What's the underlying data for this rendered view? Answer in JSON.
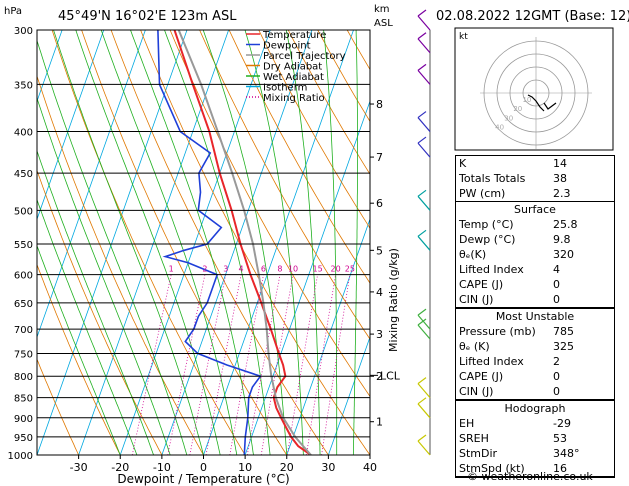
{
  "header": {
    "hpa_unit": "hPa",
    "km_unit": "km",
    "asl_label": "ASL",
    "location": "45°49'N  16°02'E  123m  ASL",
    "datetime": "02.08.2022  12GMT  (Base: 12)"
  },
  "legend": [
    {
      "label": "Temperature",
      "color": "#e8262a",
      "style": "solid"
    },
    {
      "label": "Dewpoint",
      "color": "#1f3fd8",
      "style": "solid"
    },
    {
      "label": "Parcel Trajectory",
      "color": "#999999",
      "style": "solid"
    },
    {
      "label": "Dry Adiabat",
      "color": "#e07800",
      "style": "solid"
    },
    {
      "label": "Wet Adiabat",
      "color": "#20b020",
      "style": "solid"
    },
    {
      "label": "Isotherm",
      "color": "#00a8e0",
      "style": "solid"
    },
    {
      "label": "Mixing Ratio",
      "color": "#d00090",
      "style": "dotted"
    }
  ],
  "chart_data": {
    "type": "line",
    "title": "",
    "xlabel": "Dewpoint / Temperature (°C)",
    "ylabel": "hPa",
    "right_axis_label": "Mixing Ratio (g/kg)",
    "pressure_levels": [
      300,
      350,
      400,
      450,
      500,
      550,
      600,
      650,
      700,
      750,
      800,
      850,
      900,
      950,
      1000
    ],
    "x_ticks": [
      -30,
      -20,
      -10,
      0,
      10,
      20,
      30,
      40
    ],
    "xlim": [
      -40,
      40
    ],
    "km_ticks": [
      {
        "label": "8",
        "p": 370
      },
      {
        "label": "7",
        "p": 430
      },
      {
        "label": "6",
        "p": 490
      },
      {
        "label": "5",
        "p": 560
      },
      {
        "label": "4",
        "p": 630
      },
      {
        "label": "3",
        "p": 710
      },
      {
        "label": "2",
        "p": 800
      },
      {
        "label": "1",
        "p": 910
      }
    ],
    "lcl_label": "LCL",
    "lcl_p": 798,
    "mixing_ratio_labels": [
      "1",
      "2",
      "3",
      "4",
      "6",
      "8",
      "10",
      "15",
      "20",
      "25"
    ],
    "mixing_ratio_values": [
      1,
      2,
      3,
      4,
      6,
      8,
      10,
      15,
      20,
      25
    ],
    "series": [
      {
        "name": "Temperature",
        "color": "#e8262a",
        "points": [
          {
            "p": 1000,
            "t": 25.8
          },
          {
            "p": 975,
            "t": 22
          },
          {
            "p": 950,
            "t": 19.5
          },
          {
            "p": 925,
            "t": 17.5
          },
          {
            "p": 900,
            "t": 15.5
          },
          {
            "p": 875,
            "t": 13.5
          },
          {
            "p": 850,
            "t": 12
          },
          {
            "p": 825,
            "t": 12
          },
          {
            "p": 800,
            "t": 13
          },
          {
            "p": 775,
            "t": 11.5
          },
          {
            "p": 750,
            "t": 9.5
          },
          {
            "p": 700,
            "t": 5.5
          },
          {
            "p": 650,
            "t": 1
          },
          {
            "p": 600,
            "t": -4
          },
          {
            "p": 550,
            "t": -9
          },
          {
            "p": 500,
            "t": -14
          },
          {
            "p": 450,
            "t": -20
          },
          {
            "p": 400,
            "t": -26
          },
          {
            "p": 350,
            "t": -34
          },
          {
            "p": 300,
            "t": -43
          }
        ]
      },
      {
        "name": "Dewpoint",
        "color": "#1f3fd8",
        "points": [
          {
            "p": 1000,
            "t": 9.8
          },
          {
            "p": 950,
            "t": 8.5
          },
          {
            "p": 900,
            "t": 7.5
          },
          {
            "p": 850,
            "t": 6
          },
          {
            "p": 825,
            "t": 6
          },
          {
            "p": 800,
            "t": 7
          },
          {
            "p": 775,
            "t": -2
          },
          {
            "p": 750,
            "t": -10
          },
          {
            "p": 725,
            "t": -14
          },
          {
            "p": 700,
            "t": -13
          },
          {
            "p": 675,
            "t": -13
          },
          {
            "p": 650,
            "t": -12
          },
          {
            "p": 625,
            "t": -12
          },
          {
            "p": 600,
            "t": -12
          },
          {
            "p": 580,
            "t": -20
          },
          {
            "p": 570,
            "t": -26
          },
          {
            "p": 560,
            "t": -22
          },
          {
            "p": 550,
            "t": -17
          },
          {
            "p": 525,
            "t": -15
          },
          {
            "p": 500,
            "t": -22
          },
          {
            "p": 475,
            "t": -23
          },
          {
            "p": 450,
            "t": -25
          },
          {
            "p": 425,
            "t": -24
          },
          {
            "p": 400,
            "t": -33
          },
          {
            "p": 350,
            "t": -42
          },
          {
            "p": 300,
            "t": -47
          }
        ]
      },
      {
        "name": "Parcel Trajectory",
        "color": "#999999",
        "points": [
          {
            "p": 1000,
            "t": 25.8
          },
          {
            "p": 950,
            "t": 20.5
          },
          {
            "p": 900,
            "t": 16
          },
          {
            "p": 850,
            "t": 12.5
          },
          {
            "p": 798,
            "t": 9.5
          },
          {
            "p": 750,
            "t": 7
          },
          {
            "p": 700,
            "t": 4.5
          },
          {
            "p": 650,
            "t": 1.5
          },
          {
            "p": 600,
            "t": -2
          },
          {
            "p": 550,
            "t": -6
          },
          {
            "p": 500,
            "t": -11
          },
          {
            "p": 450,
            "t": -17
          },
          {
            "p": 400,
            "t": -24
          },
          {
            "p": 350,
            "t": -32
          },
          {
            "p": 300,
            "t": -42
          }
        ]
      }
    ]
  },
  "hodograph": {
    "unit_label": "kt",
    "ring_labels": [
      "10",
      "20",
      "30",
      "40"
    ]
  },
  "indices": {
    "top": [
      {
        "key": "K",
        "value": "14"
      },
      {
        "key": "Totals Totals",
        "value": "38"
      },
      {
        "key": "PW (cm)",
        "value": "2.3"
      }
    ],
    "surface_title": "Surface",
    "surface": [
      {
        "key": "Temp (°C)",
        "value": "25.8"
      },
      {
        "key": "Dewp (°C)",
        "value": "9.8"
      },
      {
        "key": "θₑ(K)",
        "value": "320"
      },
      {
        "key": "Lifted Index",
        "value": "4"
      },
      {
        "key": "CAPE (J)",
        "value": "0"
      },
      {
        "key": "CIN (J)",
        "value": "0"
      }
    ],
    "mu_title": "Most Unstable",
    "most_unstable": [
      {
        "key": "Pressure (mb)",
        "value": "785"
      },
      {
        "key": "θₑ (K)",
        "value": "325"
      },
      {
        "key": "Lifted Index",
        "value": "2"
      },
      {
        "key": "CAPE (J)",
        "value": "0"
      },
      {
        "key": "CIN (J)",
        "value": "0"
      }
    ],
    "hodo_title": "Hodograph",
    "hodo": [
      {
        "key": "EH",
        "value": "-29"
      },
      {
        "key": "SREH",
        "value": "53"
      },
      {
        "key": "StmDir",
        "value": "348°"
      },
      {
        "key": "StmSpd (kt)",
        "value": "16"
      }
    ]
  },
  "footer": "© weatheronline.co.uk"
}
